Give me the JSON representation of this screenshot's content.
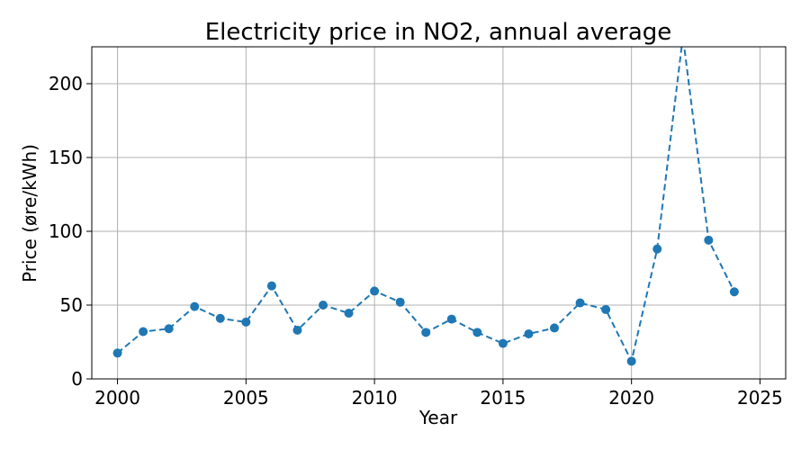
{
  "chart_data": {
    "type": "line",
    "title": "Electricity price in NO2, annual average",
    "xlabel": "Year",
    "ylabel": "Price (øre/kWh)",
    "xlim": [
      1999,
      2026
    ],
    "ylim": [
      0,
      225
    ],
    "xticks": [
      2000,
      2005,
      2010,
      2015,
      2020,
      2025
    ],
    "yticks": [
      0,
      50,
      100,
      150,
      200
    ],
    "grid": true,
    "line_style": "dashed",
    "marker": "circle",
    "color": "#1f77b4",
    "series": [
      {
        "x": [
          2000,
          2001,
          2002,
          2003,
          2004,
          2005,
          2006,
          2007,
          2008,
          2009,
          2010,
          2011,
          2012,
          2013,
          2014,
          2015,
          2016,
          2017,
          2018,
          2019,
          2020,
          2021,
          2022,
          2023,
          2024
        ],
        "values": [
          17.5,
          32,
          34,
          49,
          41,
          38.5,
          63,
          33,
          50,
          44.5,
          59.5,
          52,
          31.5,
          40.5,
          31.5,
          24,
          30.5,
          34.5,
          51.5,
          47,
          12,
          88,
          232,
          94,
          59
        ]
      }
    ]
  }
}
